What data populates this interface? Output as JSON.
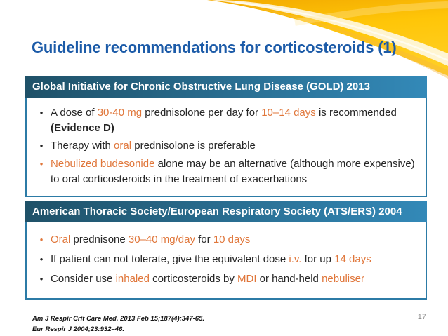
{
  "slide": {
    "title": "Guideline recommendations for corticosteroids (1)",
    "page_number": "17",
    "footer_lines": [
      "Am J Respir Crit Care Med. 2013 Feb 15;187(4):347-65.",
      "Eur Respir J 2004;23:932–46."
    ]
  },
  "colors": {
    "title_blue": "#1C5BA8",
    "header_gradient_left": "#1F5168",
    "header_gradient_right": "#3389B8",
    "box_border": "#2C7BA6",
    "accent_orange": "#E0763A",
    "body_text": "#262626",
    "swoosh_gold": "#FFC608",
    "page_number_gray": "#8C8C8C"
  },
  "boxes": [
    {
      "header": "Global Initiative for Chronic Obstructive Lung Disease (GOLD) 2013",
      "bullets": [
        {
          "bullet_color": "dark",
          "segments": [
            {
              "t": "A dose of ",
              "c": "dark"
            },
            {
              "t": "30-40 mg",
              "c": "orange"
            },
            {
              "t": " prednisolone per day for ",
              "c": "dark"
            },
            {
              "t": "10–14 days",
              "c": "orange"
            },
            {
              "t": " is recommended ",
              "c": "dark"
            },
            {
              "t": "(Evidence D)",
              "c": "dark-bold"
            }
          ]
        },
        {
          "bullet_color": "dark",
          "segments": [
            {
              "t": "Therapy with ",
              "c": "dark"
            },
            {
              "t": "oral",
              "c": "orange"
            },
            {
              "t": " prednisolone is preferable",
              "c": "dark"
            }
          ]
        },
        {
          "bullet_color": "orange",
          "segments": [
            {
              "t": "Nebulized budesonide",
              "c": "orange"
            },
            {
              "t": " alone may be an alternative (although more expensive) to oral corticosteroids in the treatment of exacerbations",
              "c": "dark"
            }
          ]
        }
      ]
    },
    {
      "header": "American Thoracic Society/European Respiratory Society (ATS/ERS) 2004",
      "bullets": [
        {
          "bullet_color": "orange",
          "segments": [
            {
              "t": "Oral",
              "c": "orange"
            },
            {
              "t": " prednisone ",
              "c": "dark"
            },
            {
              "t": "30–40 mg/day",
              "c": "orange"
            },
            {
              "t": " for ",
              "c": "dark"
            },
            {
              "t": "10 days",
              "c": "orange"
            }
          ]
        },
        {
          "bullet_color": "dark",
          "segments": [
            {
              "t": "If patient can not tolerate, give the equivalent dose ",
              "c": "dark"
            },
            {
              "t": "i.v.",
              "c": "orange"
            },
            {
              "t": " for up ",
              "c": "dark"
            },
            {
              "t": "14 days",
              "c": "orange"
            }
          ]
        },
        {
          "bullet_color": "dark",
          "segments": [
            {
              "t": "Consider use ",
              "c": "dark"
            },
            {
              "t": "inhaled",
              "c": "orange"
            },
            {
              "t": " corticosteroids by ",
              "c": "dark"
            },
            {
              "t": "MDI",
              "c": "orange"
            },
            {
              "t": " or hand-held ",
              "c": "dark"
            },
            {
              "t": "nebuliser",
              "c": "orange"
            }
          ]
        }
      ]
    }
  ]
}
